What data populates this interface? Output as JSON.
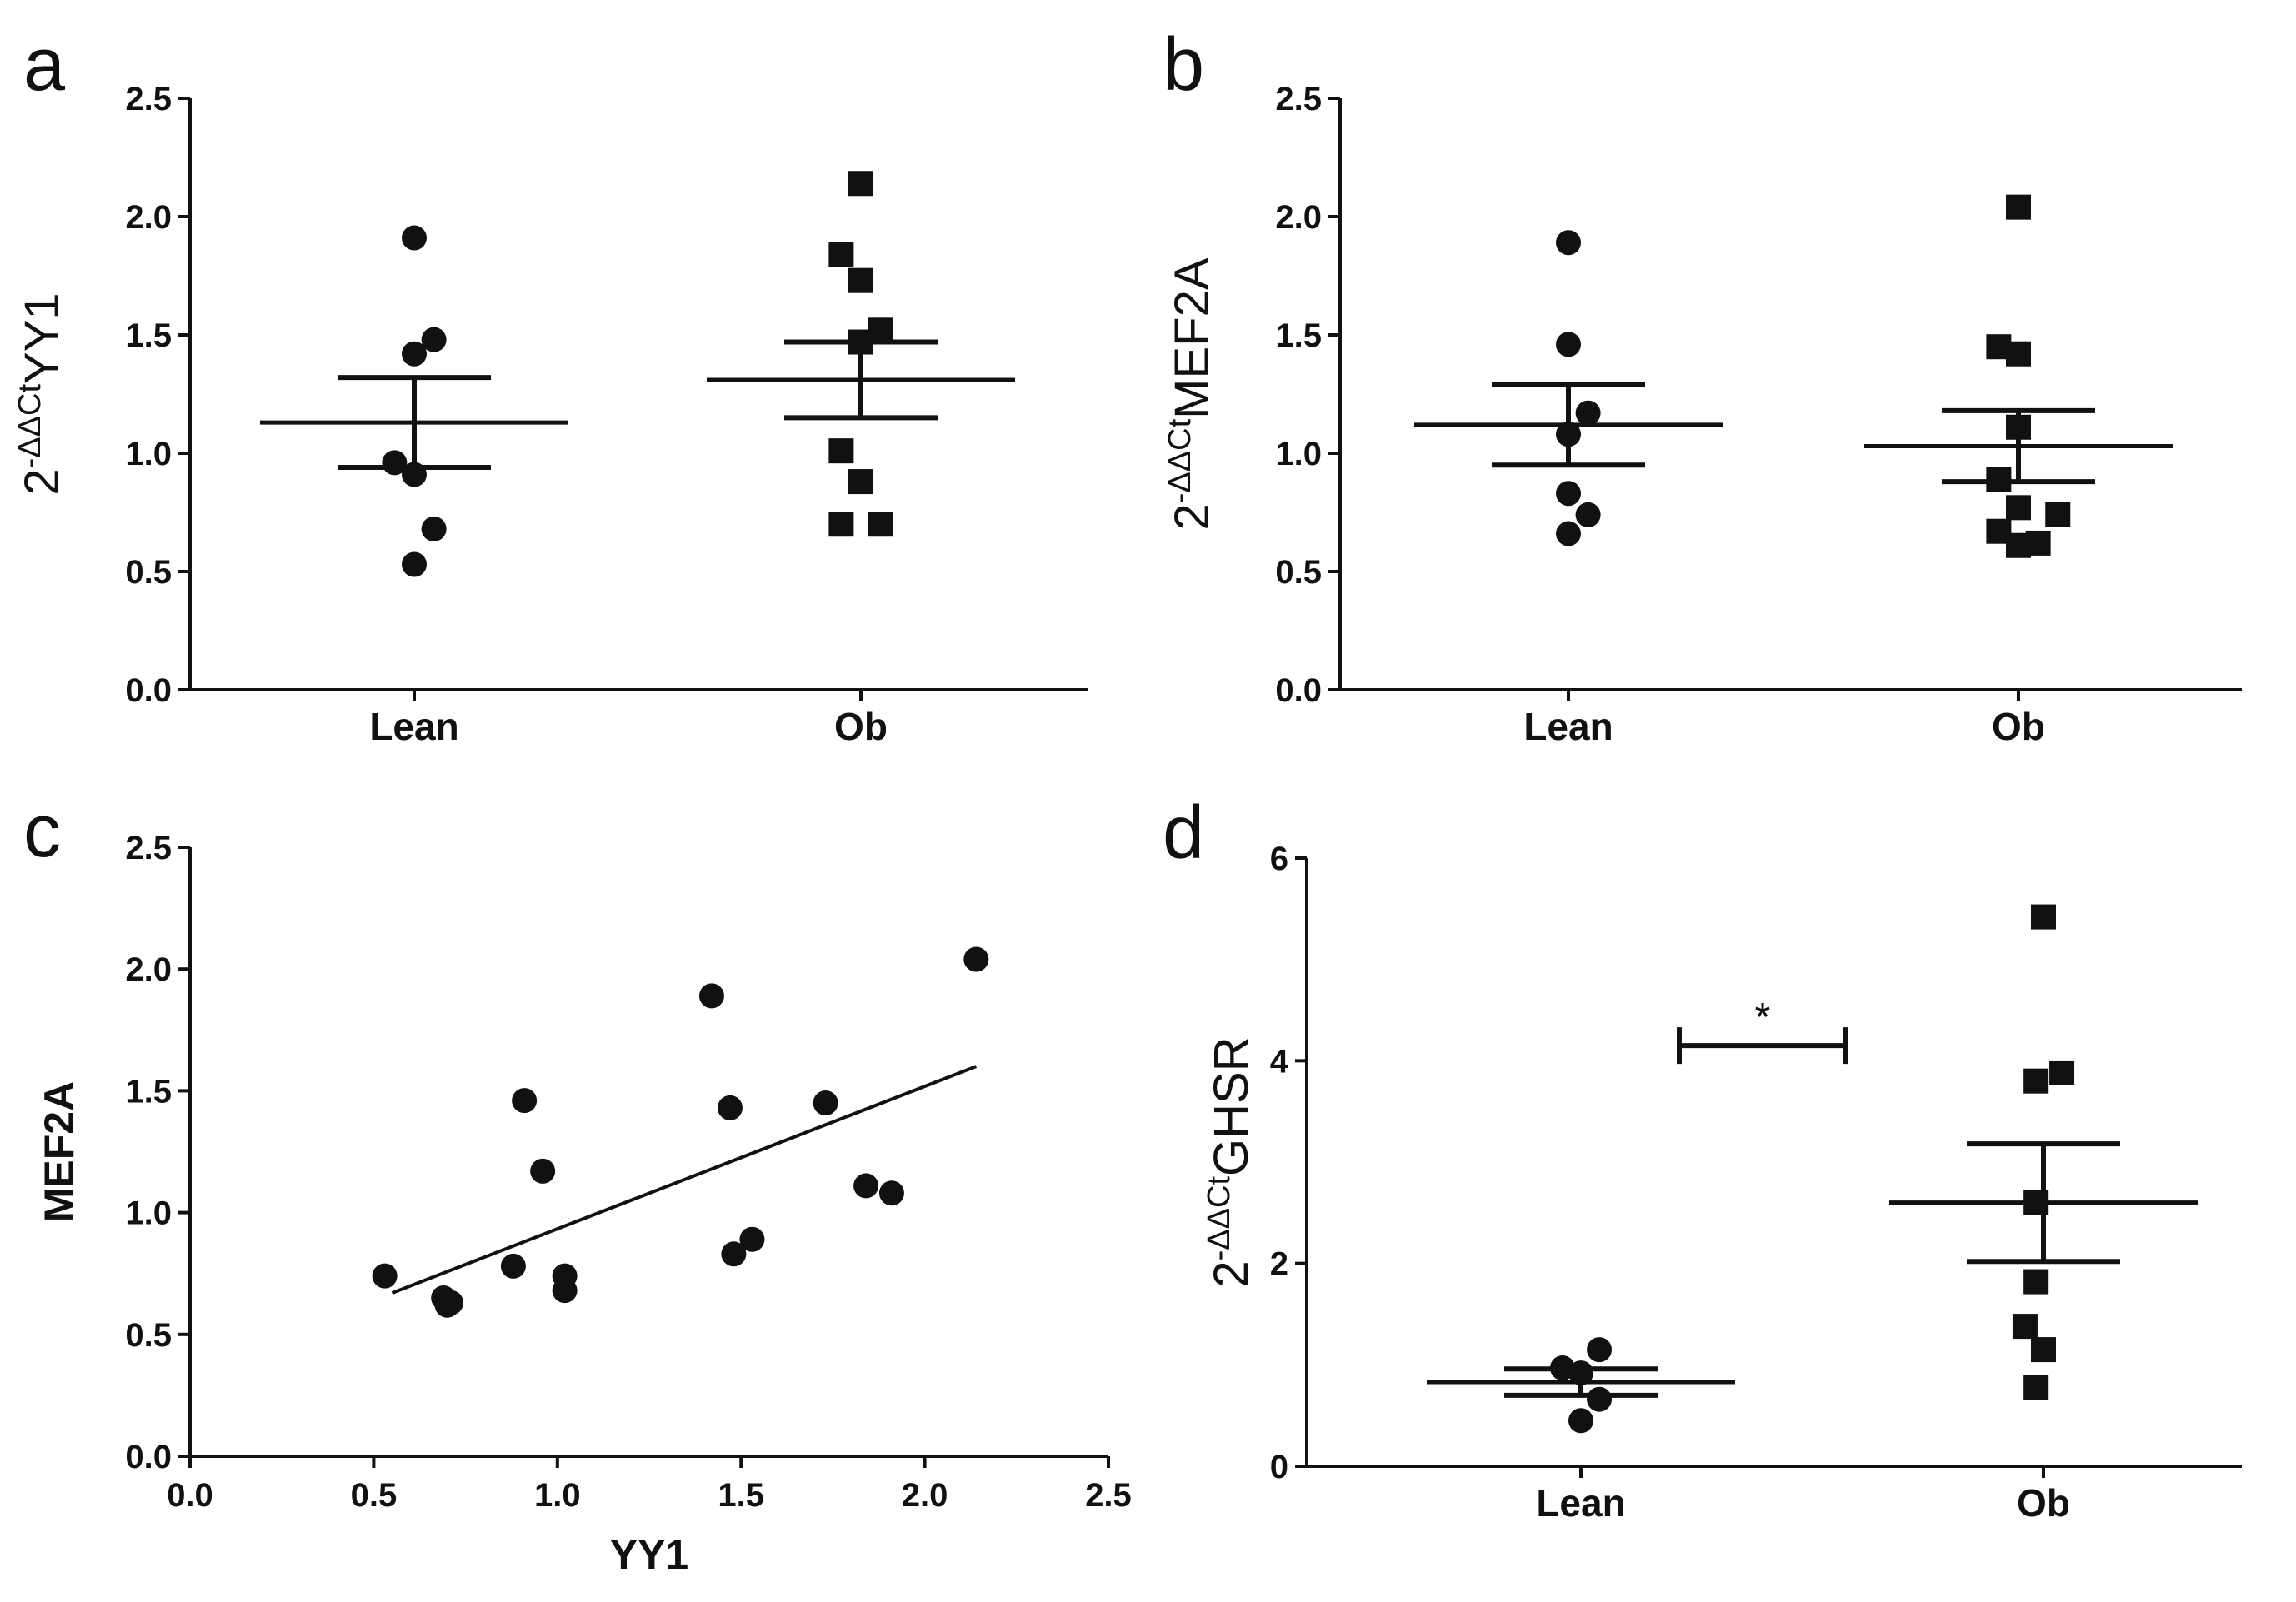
{
  "chart_data": [
    {
      "id": "a",
      "panel_letter": "a",
      "type": "scatter",
      "chart_style": "dot-plot-mean-sem",
      "ylabel": "YY1",
      "ylabel_prefix": "2",
      "ylabel_superscript": "-ΔΔCt",
      "ylim": [
        0,
        2.5
      ],
      "yticks": [
        "0.0",
        "0.5",
        "1.0",
        "1.5",
        "2.0",
        "2.5"
      ],
      "categories": [
        "Lean",
        "Ob"
      ],
      "series": [
        {
          "name": "Lean",
          "marker": "circle",
          "values": [
            1.91,
            1.48,
            1.42,
            0.96,
            0.91,
            0.68,
            0.53
          ],
          "offsets": [
            0,
            0.5,
            0,
            -0.5,
            0,
            0.5,
            0
          ],
          "mean": 1.13,
          "sem": 0.19
        },
        {
          "name": "Ob",
          "marker": "square",
          "values": [
            2.14,
            1.84,
            1.73,
            1.52,
            1.47,
            1.01,
            0.88,
            0.7,
            0.7
          ],
          "offsets": [
            0,
            -0.5,
            0,
            0.5,
            0,
            -0.5,
            0,
            -0.5,
            0.5
          ],
          "mean": 1.31,
          "sem": 0.16
        }
      ]
    },
    {
      "id": "b",
      "panel_letter": "b",
      "type": "scatter",
      "chart_style": "dot-plot-mean-sem",
      "ylabel": "MEF2A",
      "ylabel_prefix": "2",
      "ylabel_superscript": "-ΔΔCt",
      "ylim": [
        0,
        2.5
      ],
      "yticks": [
        "0.0",
        "0.5",
        "1.0",
        "1.5",
        "2.0",
        "2.5"
      ],
      "categories": [
        "Lean",
        "Ob"
      ],
      "series": [
        {
          "name": "Lean",
          "marker": "circle",
          "values": [
            1.89,
            1.46,
            1.17,
            1.08,
            0.83,
            0.74,
            0.66
          ],
          "offsets": [
            0,
            0,
            0.5,
            0,
            0,
            0.5,
            0
          ],
          "mean": 1.12,
          "sem": 0.17
        },
        {
          "name": "Ob",
          "marker": "square",
          "values": [
            2.04,
            1.45,
            1.42,
            1.11,
            0.89,
            0.77,
            0.74,
            0.67,
            0.62,
            0.61
          ],
          "offsets": [
            0,
            -0.5,
            0,
            0,
            -0.5,
            0,
            1,
            -0.5,
            0.5,
            0
          ],
          "mean": 1.03,
          "sem": 0.15
        }
      ]
    },
    {
      "id": "c",
      "panel_letter": "c",
      "type": "scatter",
      "chart_style": "xy-regression",
      "xlabel": "YY1",
      "ylabel": "MEF2A",
      "xlim": [
        0,
        2.5
      ],
      "ylim": [
        0,
        2.5
      ],
      "xticks": [
        "0.0",
        "0.5",
        "1.0",
        "1.5",
        "2.0",
        "2.5"
      ],
      "yticks": [
        "0.0",
        "0.5",
        "1.0",
        "1.5",
        "2.0",
        "2.5"
      ],
      "points": [
        [
          0.53,
          0.74
        ],
        [
          0.69,
          0.65
        ],
        [
          0.7,
          0.62
        ],
        [
          0.71,
          0.63
        ],
        [
          0.88,
          0.78
        ],
        [
          0.91,
          1.46
        ],
        [
          0.96,
          1.17
        ],
        [
          1.02,
          0.74
        ],
        [
          1.02,
          0.68
        ],
        [
          1.42,
          1.89
        ],
        [
          1.47,
          1.43
        ],
        [
          1.48,
          0.83
        ],
        [
          1.53,
          0.89
        ],
        [
          1.73,
          1.45
        ],
        [
          1.84,
          1.11
        ],
        [
          1.91,
          1.08
        ],
        [
          2.14,
          2.04
        ]
      ],
      "regression": {
        "x": [
          0.55,
          2.14
        ],
        "y": [
          0.67,
          1.6
        ]
      }
    },
    {
      "id": "d",
      "panel_letter": "d",
      "type": "scatter",
      "chart_style": "dot-plot-mean-sem",
      "ylabel": "GHSR",
      "ylabel_prefix": "2",
      "ylabel_superscript": "-ΔΔCt",
      "ylim": [
        0,
        6
      ],
      "yticks": [
        "0",
        "2",
        "4",
        "6"
      ],
      "categories": [
        "Lean",
        "Ob"
      ],
      "series": [
        {
          "name": "Lean",
          "marker": "circle",
          "values": [
            1.15,
            0.97,
            0.92,
            0.66,
            0.45
          ],
          "offsets": [
            0.5,
            -0.5,
            0,
            0.5,
            0
          ],
          "mean": 0.83,
          "sem": 0.13
        },
        {
          "name": "Ob",
          "marker": "square",
          "values": [
            5.42,
            3.88,
            3.8,
            2.6,
            1.82,
            1.38,
            1.15,
            0.78
          ],
          "offsets": [
            0,
            0.5,
            -0.2,
            -0.2,
            -0.2,
            -0.5,
            0,
            -0.2
          ],
          "mean": 2.6,
          "sem": 0.58
        }
      ],
      "significance": {
        "label": "*",
        "y": 4.15
      }
    }
  ]
}
